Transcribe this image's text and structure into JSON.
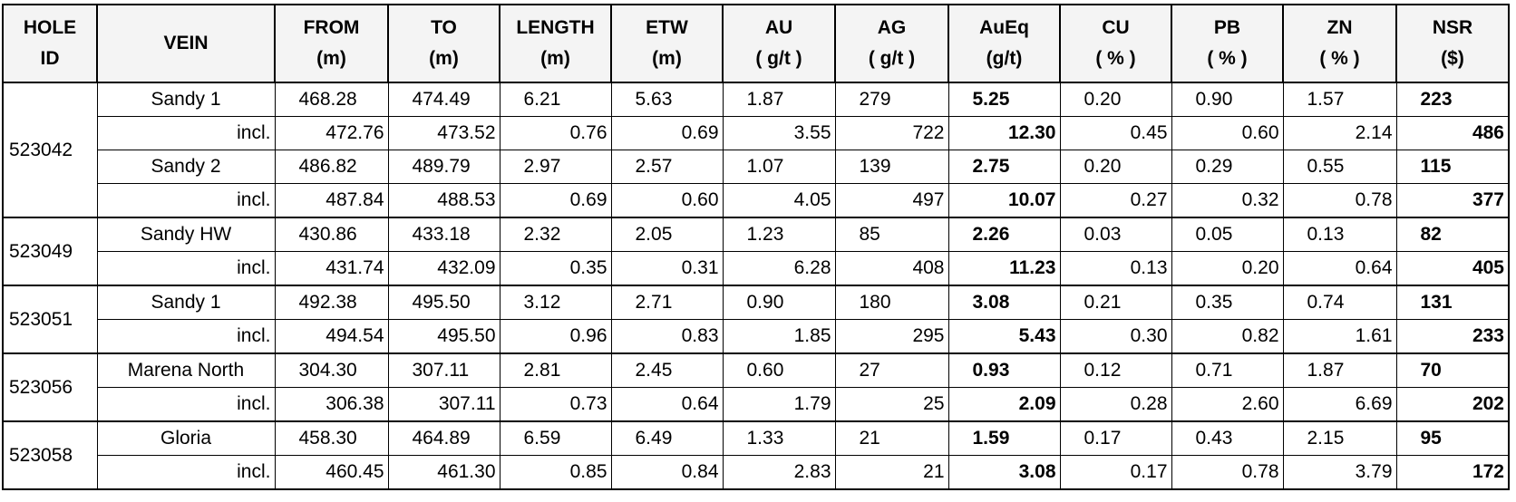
{
  "table": {
    "headers": [
      [
        "HOLE",
        "ID"
      ],
      [
        "VEIN"
      ],
      [
        "FROM",
        "(m)"
      ],
      [
        "TO",
        "(m)"
      ],
      [
        "LENGTH",
        "(m)"
      ],
      [
        "ETW",
        "(m)"
      ],
      [
        "AU",
        "( g/t )"
      ],
      [
        "AG",
        "( g/t )"
      ],
      [
        "AuEq",
        "(g/t)"
      ],
      [
        "CU",
        "( % )"
      ],
      [
        "PB",
        "( % )"
      ],
      [
        "ZN",
        "( % )"
      ],
      [
        "NSR",
        "($)"
      ]
    ],
    "groups": [
      {
        "hole": "523042",
        "rows": [
          [
            "Sandy 1",
            "468.28",
            "474.49",
            "6.21",
            "5.63",
            "1.87",
            "279",
            "5.25",
            "0.20",
            "0.90",
            "1.57",
            "223"
          ],
          [
            "incl.",
            "472.76",
            "473.52",
            "0.76",
            "0.69",
            "3.55",
            "722",
            "12.30",
            "0.45",
            "0.60",
            "2.14",
            "486"
          ],
          [
            "Sandy 2",
            "486.82",
            "489.79",
            "2.97",
            "2.57",
            "1.07",
            "139",
            "2.75",
            "0.20",
            "0.29",
            "0.55",
            "115"
          ],
          [
            "incl.",
            "487.84",
            "488.53",
            "0.69",
            "0.60",
            "4.05",
            "497",
            "10.07",
            "0.27",
            "0.32",
            "0.78",
            "377"
          ]
        ]
      },
      {
        "hole": "523049",
        "rows": [
          [
            "Sandy HW",
            "430.86",
            "433.18",
            "2.32",
            "2.05",
            "1.23",
            "85",
            "2.26",
            "0.03",
            "0.05",
            "0.13",
            "82"
          ],
          [
            "incl.",
            "431.74",
            "432.09",
            "0.35",
            "0.31",
            "6.28",
            "408",
            "11.23",
            "0.13",
            "0.20",
            "0.64",
            "405"
          ]
        ]
      },
      {
        "hole": "523051",
        "rows": [
          [
            "Sandy 1",
            "492.38",
            "495.50",
            "3.12",
            "2.71",
            "0.90",
            "180",
            "3.08",
            "0.21",
            "0.35",
            "0.74",
            "131"
          ],
          [
            "incl.",
            "494.54",
            "495.50",
            "0.96",
            "0.83",
            "1.85",
            "295",
            "5.43",
            "0.30",
            "0.82",
            "1.61",
            "233"
          ]
        ]
      },
      {
        "hole": "523056",
        "rows": [
          [
            "Marena North",
            "304.30",
            "307.11",
            "2.81",
            "2.45",
            "0.60",
            "27",
            "0.93",
            "0.12",
            "0.71",
            "1.87",
            "70"
          ],
          [
            "incl.",
            "306.38",
            "307.11",
            "0.73",
            "0.64",
            "1.79",
            "25",
            "2.09",
            "0.28",
            "2.60",
            "6.69",
            "202"
          ]
        ]
      },
      {
        "hole": "523058",
        "rows": [
          [
            "Gloria",
            "458.30",
            "464.89",
            "6.59",
            "6.49",
            "1.33",
            "21",
            "1.59",
            "0.17",
            "0.43",
            "2.15",
            "95"
          ],
          [
            "incl.",
            "460.45",
            "461.30",
            "0.85",
            "0.84",
            "2.83",
            "21",
            "3.08",
            "0.17",
            "0.78",
            "3.79",
            "172"
          ]
        ]
      }
    ]
  }
}
